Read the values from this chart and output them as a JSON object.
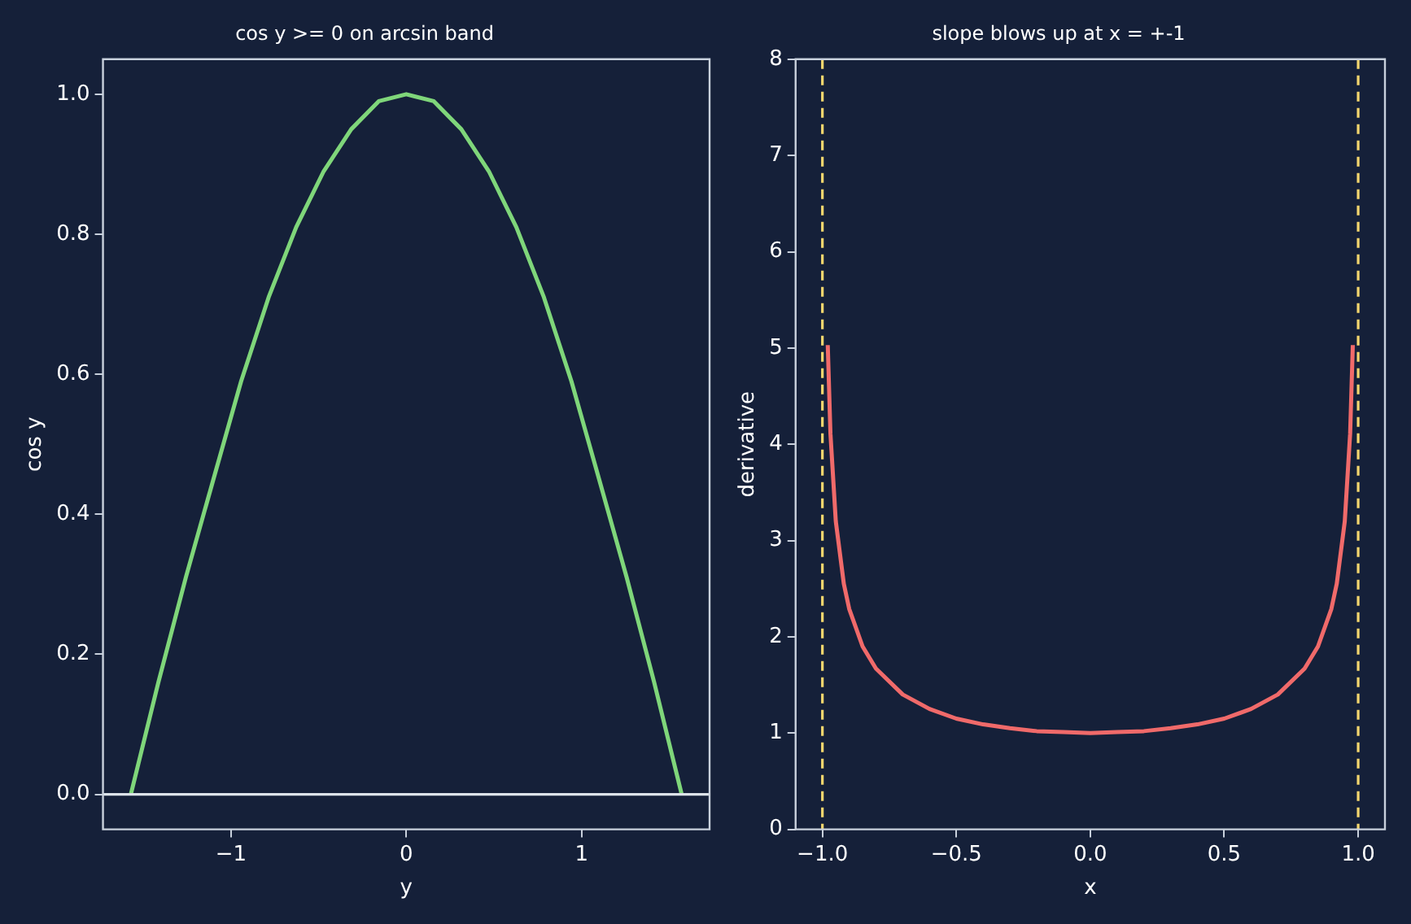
{
  "chart_data": [
    {
      "type": "line",
      "title": "cos y >= 0 on arcsin band",
      "xlabel": "y",
      "ylabel": "cos y",
      "series": [
        {
          "color": "#7fd67a",
          "x": [
            -1.571,
            -1.414,
            -1.257,
            -1.1,
            -0.942,
            -0.785,
            -0.628,
            -0.471,
            -0.314,
            -0.157,
            0,
            0.157,
            0.314,
            0.471,
            0.628,
            0.785,
            0.942,
            1.1,
            1.257,
            1.414,
            1.571
          ],
          "values": [
            0,
            0.16,
            0.31,
            0.45,
            0.59,
            0.71,
            0.81,
            0.89,
            0.95,
            0.99,
            1,
            0.99,
            0.95,
            0.89,
            0.81,
            0.71,
            0.59,
            0.45,
            0.31,
            0.16,
            0
          ]
        }
      ],
      "xlim": [
        -1.73,
        1.73
      ],
      "xticks": [
        {
          "value": -1,
          "label": "−1"
        },
        0,
        1
      ],
      "ylim": [
        -0.05,
        1.05
      ],
      "yticks": [
        {
          "value": 0,
          "label": "0.0"
        },
        0.2,
        0.4,
        0.6,
        0.8,
        {
          "value": 1,
          "label": "1.0"
        }
      ],
      "ref_lines": [
        {
          "axis": "y",
          "value": 0,
          "color": "#dde3ea",
          "line_style": "solid"
        }
      ],
      "grid": false,
      "legend": false,
      "marker": "none",
      "line_style": "solid"
    },
    {
      "type": "line",
      "title": "slope blows up at x = +-1",
      "xlabel": "x",
      "ylabel": "derivative",
      "series": [
        {
          "color": "#f06a6a",
          "x": [
            -0.98,
            -0.97,
            -0.95,
            -0.92,
            -0.9,
            -0.85,
            -0.8,
            -0.7,
            -0.6,
            -0.5,
            -0.4,
            -0.3,
            -0.2,
            -0.1,
            0,
            0.1,
            0.2,
            0.3,
            0.4,
            0.5,
            0.6,
            0.7,
            0.8,
            0.85,
            0.9,
            0.92,
            0.95,
            0.97,
            0.98
          ],
          "values": [
            5.03,
            4.11,
            3.2,
            2.55,
            2.29,
            1.9,
            1.67,
            1.4,
            1.25,
            1.15,
            1.09,
            1.05,
            1.02,
            1.01,
            1,
            1.01,
            1.02,
            1.05,
            1.09,
            1.15,
            1.25,
            1.4,
            1.67,
            1.9,
            2.29,
            2.55,
            3.2,
            4.11,
            5.03
          ]
        }
      ],
      "xlim": [
        -1.1,
        1.1
      ],
      "xticks": [
        {
          "value": -1,
          "label": "−1.0"
        },
        {
          "value": -0.5,
          "label": "−0.5"
        },
        {
          "value": 0,
          "label": "0.0"
        },
        0.5,
        {
          "value": 1,
          "label": "1.0"
        }
      ],
      "ylim": [
        0,
        8
      ],
      "yticks": [
        0,
        1,
        2,
        3,
        4,
        5,
        6,
        7,
        8
      ],
      "ref_lines": [
        {
          "axis": "x",
          "value": -1,
          "color": "#f5d76e",
          "line_style": "dashed"
        },
        {
          "axis": "x",
          "value": 1,
          "color": "#f5d76e",
          "line_style": "dashed"
        }
      ],
      "grid": false,
      "legend": false,
      "marker": "none",
      "line_style": "solid"
    }
  ]
}
